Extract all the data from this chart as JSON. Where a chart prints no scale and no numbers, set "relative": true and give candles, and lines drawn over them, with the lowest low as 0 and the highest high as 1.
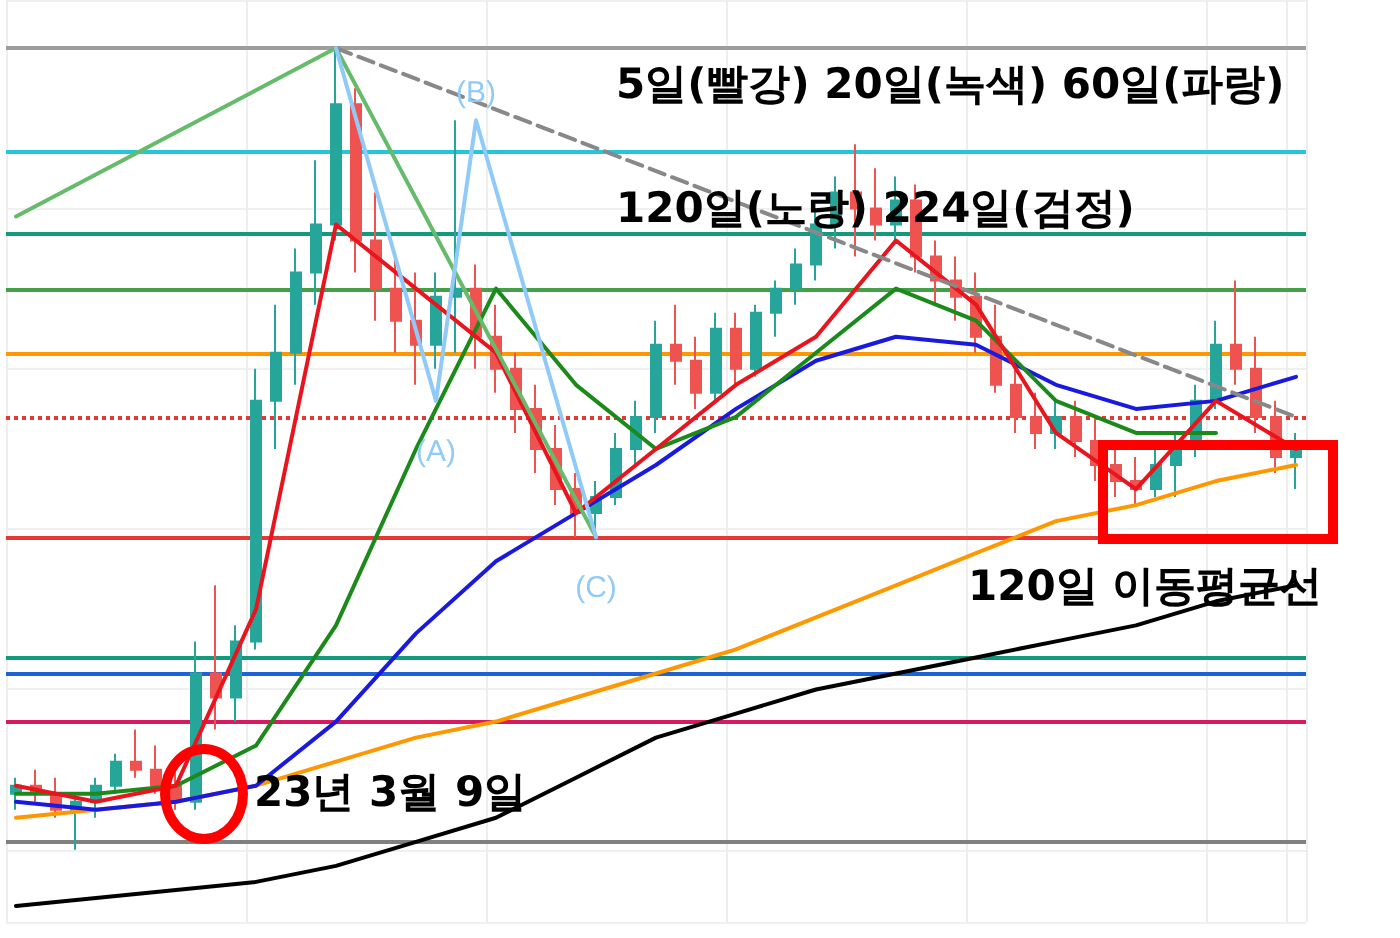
{
  "chart_data": {
    "type": "candlestick",
    "relative": true,
    "grid": true,
    "categories": [
      null,
      null,
      null,
      null,
      null,
      null,
      null,
      null,
      null,
      null,
      null,
      null,
      null,
      null,
      null,
      null,
      null,
      null,
      null,
      null,
      null,
      null,
      null,
      null,
      null,
      null,
      null,
      null,
      null,
      null,
      null,
      null,
      null,
      null,
      null,
      null,
      null,
      null,
      null,
      null,
      null,
      null,
      null,
      null,
      null,
      null,
      null,
      null,
      null,
      null,
      null,
      null,
      null,
      null,
      null,
      null,
      null,
      null,
      null,
      null,
      null,
      null,
      null,
      null,
      null
    ],
    "colors": [
      "#26a69a",
      "#ef5350",
      "#ef5350",
      "#26a69a",
      "#26a69a",
      "#26a69a",
      "#ef5350",
      "#ef5350",
      "#ef5350",
      "#26a69a",
      "#ef5350",
      "#26a69a",
      "#26a69a",
      "#26a69a",
      "#26a69a",
      "#26a69a",
      "#26a69a",
      "#ef5350",
      "#ef5350",
      "#ef5350",
      "#ef5350",
      "#26a69a",
      "#26a69a",
      "#ef5350",
      "#ef5350",
      "#ef5350",
      "#ef5350",
      "#ef5350",
      "#ef5350",
      "#26a69a",
      "#26a69a",
      "#26a69a",
      "#26a69a",
      "#ef5350",
      "#ef5350",
      "#26a69a",
      "#ef5350",
      "#26a69a",
      "#26a69a",
      "#26a69a",
      "#26a69a",
      "#26a69a",
      "#ef5350",
      "#ef5350",
      "#26a69a",
      "#ef5350",
      "#ef5350",
      "#ef5350",
      "#ef5350",
      "#ef5350",
      "#ef5350",
      "#ef5350",
      "#26a69a",
      "#ef5350",
      "#ef5350",
      "#ef5350",
      "#ef5350",
      "#26a69a",
      "#26a69a",
      "#26a69a",
      "#26a69a",
      "#ef5350",
      "#ef5350",
      "#ef5350",
      "#26a69a"
    ],
    "ohlc": [
      [
        0.07,
        0.09,
        0.05,
        0.08
      ],
      [
        0.08,
        0.1,
        0.06,
        0.07
      ],
      [
        0.07,
        0.09,
        0.04,
        0.05
      ],
      [
        0.05,
        0.07,
        0.0,
        0.06
      ],
      [
        0.06,
        0.09,
        0.04,
        0.08
      ],
      [
        0.08,
        0.12,
        0.07,
        0.11
      ],
      [
        0.11,
        0.15,
        0.09,
        0.1
      ],
      [
        0.1,
        0.13,
        0.07,
        0.08
      ],
      [
        0.08,
        0.1,
        0.05,
        0.06
      ],
      [
        0.06,
        0.26,
        0.05,
        0.22
      ],
      [
        0.22,
        0.33,
        0.15,
        0.19
      ],
      [
        0.19,
        0.28,
        0.16,
        0.26
      ],
      [
        0.26,
        0.6,
        0.25,
        0.56
      ],
      [
        0.56,
        0.68,
        0.5,
        0.62
      ],
      [
        0.62,
        0.75,
        0.58,
        0.72
      ],
      [
        0.72,
        0.86,
        0.68,
        0.78
      ],
      [
        0.78,
        1.0,
        0.76,
        0.93
      ],
      [
        0.93,
        0.95,
        0.72,
        0.76
      ],
      [
        0.76,
        0.82,
        0.66,
        0.7
      ],
      [
        0.7,
        0.74,
        0.62,
        0.66
      ],
      [
        0.66,
        0.72,
        0.58,
        0.63
      ],
      [
        0.63,
        0.72,
        0.6,
        0.69
      ],
      [
        0.69,
        0.91,
        0.62,
        0.7
      ],
      [
        0.7,
        0.73,
        0.6,
        0.64
      ],
      [
        0.64,
        0.68,
        0.57,
        0.6
      ],
      [
        0.6,
        0.62,
        0.52,
        0.55
      ],
      [
        0.55,
        0.58,
        0.47,
        0.5
      ],
      [
        0.5,
        0.53,
        0.43,
        0.45
      ],
      [
        0.45,
        0.47,
        0.39,
        0.42
      ],
      [
        0.42,
        0.46,
        0.39,
        0.44
      ],
      [
        0.44,
        0.52,
        0.43,
        0.5
      ],
      [
        0.5,
        0.56,
        0.48,
        0.54
      ],
      [
        0.54,
        0.66,
        0.52,
        0.63
      ],
      [
        0.63,
        0.68,
        0.58,
        0.61
      ],
      [
        0.61,
        0.64,
        0.55,
        0.57
      ],
      [
        0.57,
        0.67,
        0.56,
        0.65
      ],
      [
        0.65,
        0.67,
        0.58,
        0.6
      ],
      [
        0.6,
        0.68,
        0.59,
        0.67
      ],
      [
        0.67,
        0.71,
        0.64,
        0.7
      ],
      [
        0.7,
        0.75,
        0.68,
        0.73
      ],
      [
        0.73,
        0.8,
        0.71,
        0.78
      ],
      [
        0.78,
        0.84,
        0.75,
        0.82
      ],
      [
        0.82,
        0.88,
        0.74,
        0.8
      ],
      [
        0.8,
        0.85,
        0.76,
        0.78
      ],
      [
        0.78,
        0.84,
        0.76,
        0.81
      ],
      [
        0.81,
        0.83,
        0.72,
        0.74
      ],
      [
        0.74,
        0.76,
        0.68,
        0.71
      ],
      [
        0.71,
        0.74,
        0.66,
        0.69
      ],
      [
        0.69,
        0.72,
        0.62,
        0.64
      ],
      [
        0.64,
        0.68,
        0.57,
        0.58
      ],
      [
        0.58,
        0.6,
        0.52,
        0.54
      ],
      [
        0.54,
        0.57,
        0.5,
        0.52
      ],
      [
        0.52,
        0.56,
        0.5,
        0.54
      ],
      [
        0.54,
        0.56,
        0.49,
        0.51
      ],
      [
        0.51,
        0.54,
        0.46,
        0.48
      ],
      [
        0.48,
        0.5,
        0.44,
        0.46
      ],
      [
        0.46,
        0.49,
        0.43,
        0.45
      ],
      [
        0.45,
        0.5,
        0.44,
        0.48
      ],
      [
        0.48,
        0.52,
        0.44,
        0.5
      ],
      [
        0.5,
        0.58,
        0.49,
        0.56
      ],
      [
        0.56,
        0.66,
        0.55,
        0.63
      ],
      [
        0.63,
        0.71,
        0.58,
        0.6
      ],
      [
        0.6,
        0.64,
        0.52,
        0.54
      ],
      [
        0.54,
        0.56,
        0.47,
        0.49
      ],
      [
        0.49,
        0.52,
        0.45,
        0.51
      ]
    ],
    "series": [
      {
        "type": "line",
        "color": "#000000",
        "values": [
          -0.07,
          null,
          null,
          null,
          -0.06,
          null,
          null,
          null,
          -0.05,
          null,
          null,
          null,
          -0.04,
          null,
          null,
          null,
          -0.02,
          null,
          null,
          null,
          0.01,
          null,
          null,
          null,
          0.04,
          null,
          null,
          null,
          0.09,
          null,
          null,
          null,
          0.14,
          null,
          null,
          null,
          0.17,
          null,
          null,
          null,
          0.2,
          null,
          null,
          null,
          0.22,
          null,
          null,
          null,
          0.24,
          null,
          null,
          null,
          0.26,
          null,
          null,
          null,
          0.28,
          null,
          null,
          null,
          0.31,
          null,
          null,
          null,
          0.33
        ]
      },
      {
        "type": "line",
        "color": "#ff9800",
        "values": [
          0.04,
          null,
          null,
          null,
          0.05,
          null,
          null,
          null,
          0.06,
          null,
          null,
          null,
          0.08,
          null,
          null,
          null,
          0.11,
          null,
          null,
          null,
          0.14,
          null,
          null,
          null,
          0.16,
          null,
          null,
          null,
          0.19,
          null,
          null,
          null,
          0.22,
          null,
          null,
          null,
          0.25,
          null,
          null,
          null,
          0.29,
          null,
          null,
          null,
          0.33,
          null,
          null,
          null,
          0.37,
          null,
          null,
          null,
          0.41,
          null,
          null,
          null,
          0.43,
          null,
          null,
          null,
          0.46,
          null,
          null,
          null,
          0.48
        ]
      },
      {
        "type": "line",
        "color": "#1a1adf",
        "values": [
          0.06,
          null,
          null,
          null,
          0.05,
          null,
          null,
          null,
          0.06,
          null,
          null,
          null,
          0.08,
          null,
          null,
          null,
          0.16,
          null,
          null,
          null,
          0.27,
          null,
          null,
          null,
          0.36,
          null,
          null,
          null,
          0.42,
          null,
          null,
          null,
          0.48,
          null,
          null,
          null,
          0.55,
          null,
          null,
          null,
          0.61,
          null,
          null,
          null,
          0.64,
          null,
          null,
          null,
          0.63,
          null,
          null,
          null,
          0.58,
          null,
          null,
          null,
          0.55,
          null,
          null,
          null,
          0.56,
          null,
          null,
          null,
          0.59
        ]
      },
      {
        "type": "line",
        "color": "#1b8a1b",
        "values": [
          0.07,
          null,
          null,
          null,
          0.07,
          null,
          null,
          null,
          0.08,
          null,
          null,
          null,
          0.13,
          null,
          null,
          null,
          0.28,
          null,
          null,
          null,
          0.5,
          null,
          null,
          null,
          0.7,
          null,
          null,
          null,
          0.58,
          null,
          null,
          null,
          0.5,
          null,
          null,
          null,
          0.54,
          null,
          null,
          null,
          0.62,
          null,
          null,
          null,
          0.7,
          null,
          null,
          null,
          0.66,
          null,
          null,
          null,
          0.56,
          null,
          null,
          null,
          0.52,
          null,
          null,
          null,
          0.52,
          null,
          null,
          null,
          null
        ]
      },
      {
        "type": "line",
        "color": "#e8141e",
        "values": [
          0.08,
          null,
          null,
          null,
          0.06,
          null,
          null,
          null,
          0.08,
          null,
          null,
          null,
          0.3,
          null,
          null,
          null,
          0.78,
          null,
          null,
          null,
          0.7,
          null,
          null,
          null,
          0.62,
          null,
          null,
          null,
          0.42,
          null,
          null,
          null,
          0.5,
          null,
          null,
          null,
          0.58,
          null,
          null,
          null,
          0.64,
          null,
          null,
          null,
          0.76,
          null,
          null,
          null,
          0.68,
          null,
          null,
          null,
          0.52,
          null,
          null,
          null,
          0.45,
          null,
          null,
          null,
          0.56,
          null,
          null,
          null,
          0.5
        ]
      },
      {
        "type": "line",
        "color": "#66bb6a",
        "values": [
          0.79,
          null,
          null,
          null,
          null,
          null,
          null,
          null,
          null,
          null,
          null,
          null,
          null,
          null,
          null,
          null,
          1.0,
          null,
          null,
          null,
          null,
          null,
          null,
          null,
          null,
          null,
          null,
          null,
          null,
          0.39,
          null,
          null,
          null,
          null,
          null,
          null,
          null,
          null,
          null,
          null,
          null,
          null,
          null,
          null,
          null,
          null,
          null,
          null,
          null,
          null,
          null,
          null,
          null,
          null,
          null,
          null,
          null,
          null,
          null,
          null,
          null,
          null,
          null,
          null,
          null
        ]
      },
      {
        "type": "line",
        "color": "#888888",
        "line_style": "dashed",
        "values": [
          null,
          null,
          null,
          null,
          null,
          null,
          null,
          null,
          null,
          null,
          null,
          null,
          null,
          null,
          null,
          null,
          1.0,
          null,
          null,
          null,
          null,
          null,
          null,
          null,
          null,
          null,
          null,
          null,
          null,
          null,
          null,
          null,
          null,
          null,
          null,
          null,
          null,
          null,
          null,
          null,
          null,
          null,
          null,
          null,
          null,
          null,
          null,
          null,
          null,
          null,
          null,
          null,
          null,
          null,
          null,
          null,
          null,
          null,
          null,
          null,
          null,
          null,
          null,
          null,
          0.54
        ]
      },
      {
        "type": "line",
        "color": "#90caf9",
        "values": [
          null,
          null,
          null,
          null,
          null,
          null,
          null,
          null,
          null,
          null,
          null,
          null,
          null,
          null,
          null,
          null,
          1.0,
          null,
          null,
          null,
          null,
          0.56,
          null,
          0.91,
          null,
          null,
          null,
          null,
          null,
          0.39,
          null,
          null,
          null,
          null,
          null,
          null,
          null,
          null,
          null,
          null,
          null,
          null,
          null,
          null,
          null,
          null,
          null,
          null,
          null,
          null,
          null,
          null,
          null,
          null,
          null,
          null,
          null,
          null,
          null,
          null,
          null,
          null,
          null,
          null,
          null
        ]
      }
    ],
    "ref_lines": [
      {
        "axis": "y",
        "value": 1.0,
        "color": "#9e9e9e"
      },
      {
        "axis": "y",
        "value": 0.87,
        "color": "#26c6da"
      },
      {
        "axis": "y",
        "value": 0.77,
        "color": "#139a7c"
      },
      {
        "axis": "y",
        "value": 0.7,
        "color": "#43a047"
      },
      {
        "axis": "y",
        "value": 0.62,
        "color": "#ff9800"
      },
      {
        "axis": "y",
        "value": 0.54,
        "color": "#e53935",
        "line_style": "dotted"
      },
      {
        "axis": "y",
        "value": 0.39,
        "color": "#e53935"
      },
      {
        "axis": "y",
        "value": 0.24,
        "color": "#139a7c"
      },
      {
        "axis": "y",
        "value": 0.22,
        "color": "#1e63d6"
      },
      {
        "axis": "y",
        "value": 0.16,
        "color": "#d81b60"
      },
      {
        "axis": "y",
        "value": 0.01,
        "color": "#808080"
      }
    ],
    "annotations": [
      "5일(빨강) 20일(녹색) 60일(파랑)",
      "120일(노랑) 224일(검정)",
      "120일 이동평균선",
      "23년 3월 9일",
      {
        "text": "(A)",
        "y": 0.56
      },
      {
        "text": "(B)",
        "y": 0.91
      },
      {
        "text": "(C)",
        "y": 0.39
      }
    ]
  }
}
